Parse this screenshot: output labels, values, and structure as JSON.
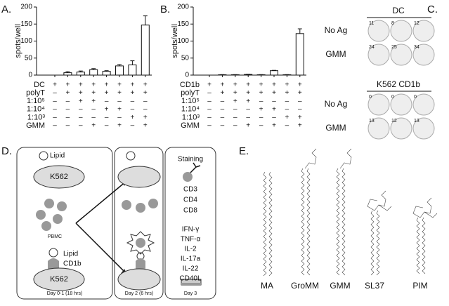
{
  "chart_data": [
    {
      "type": "bar",
      "panel_label": "A.",
      "ylabel": "spots/well",
      "color": "#ffffff",
      "ylim": [
        0,
        200
      ],
      "yticks": [
        0,
        50,
        100,
        150,
        200
      ],
      "values": [
        0,
        7,
        9,
        16,
        11,
        27,
        30,
        147
      ],
      "errors": [
        0,
        3,
        3,
        3,
        2,
        4,
        12,
        27
      ],
      "conditions": [
        {
          "name": "DC",
          "marks": [
            "+",
            "+",
            "+",
            "+",
            "+",
            "+",
            "+",
            "+"
          ]
        },
        {
          "name": "polyT",
          "marks": [
            "–",
            "+",
            "+",
            "+",
            "+",
            "+",
            "+",
            "+"
          ]
        },
        {
          "name": "1:10⁵",
          "marks": [
            "–",
            "–",
            "+",
            "+",
            "–",
            "–",
            "–",
            "–"
          ]
        },
        {
          "name": "1:10⁴",
          "marks": [
            "–",
            "–",
            "–",
            "–",
            "+",
            "+",
            "–",
            "–"
          ]
        },
        {
          "name": "1:10³",
          "marks": [
            "–",
            "–",
            "–",
            "–",
            "–",
            "–",
            "+",
            "+"
          ]
        },
        {
          "name": "GMM",
          "marks": [
            "–",
            "–",
            "–",
            "+",
            "–",
            "+",
            "–",
            "+"
          ]
        }
      ]
    },
    {
      "type": "bar",
      "panel_label": "B.",
      "ylabel": "spots/well",
      "color": "#ffffff",
      "ylim": [
        0,
        200
      ],
      "yticks": [
        0,
        50,
        100,
        150,
        200
      ],
      "values": [
        0,
        1,
        1,
        2,
        1,
        13,
        1,
        122
      ],
      "errors": [
        0,
        0.5,
        0.5,
        0.5,
        0.5,
        1,
        0.5,
        14
      ],
      "conditions": [
        {
          "name": "CD1b",
          "marks": [
            "+",
            "+",
            "+",
            "+",
            "+",
            "+",
            "+",
            "+"
          ]
        },
        {
          "name": "polyT",
          "marks": [
            "–",
            "+",
            "+",
            "+",
            "+",
            "+",
            "+",
            "+"
          ]
        },
        {
          "name": "1:10⁵",
          "marks": [
            "–",
            "–",
            "+",
            "+",
            "–",
            "–",
            "–",
            "–"
          ]
        },
        {
          "name": "1:10⁴",
          "marks": [
            "–",
            "–",
            "–",
            "–",
            "+",
            "+",
            "–",
            "–"
          ]
        },
        {
          "name": "1:10³",
          "marks": [
            "–",
            "–",
            "–",
            "–",
            "–",
            "–",
            "+",
            "+"
          ]
        },
        {
          "name": "GMM",
          "marks": [
            "–",
            "–",
            "–",
            "+",
            "–",
            "+",
            "–",
            "+"
          ]
        }
      ]
    }
  ],
  "panel_c": {
    "label": "C.",
    "groups": [
      {
        "title": "DC",
        "rows": [
          {
            "name": "No Ag",
            "counts": [
              11,
              8,
              12
            ]
          },
          {
            "name": "GMM",
            "counts": [
              24,
              25,
              34
            ]
          }
        ]
      },
      {
        "title": "K562 CD1b",
        "rows": [
          {
            "name": "No Ag",
            "counts": [
              0,
              0,
              0
            ]
          },
          {
            "name": "GMM",
            "counts": [
              13,
              12,
              13
            ]
          }
        ]
      }
    ]
  },
  "panel_d": {
    "label": "D.",
    "lipid_top": "Lipid",
    "k562_top": "K562",
    "pbmc": "PBMC",
    "lipid_bottom": "Lipid",
    "cd1b": "CD1b",
    "k562_bottom": "K562",
    "day1": "Day 0-1 (18 hrs)",
    "day2": "Day 2 (6 hrs)",
    "staining": "Staining",
    "markers": [
      "CD3",
      "CD4",
      "CD8"
    ],
    "cytokines": [
      "IFN-γ",
      "TNF-α",
      "IL-2",
      "IL-17a",
      "IL-22",
      "CD40L"
    ],
    "day3": "Day 3"
  },
  "panel_e": {
    "label": "E.",
    "lipids": [
      "MA",
      "GroMM",
      "GMM",
      "SL37",
      "PIM"
    ]
  }
}
